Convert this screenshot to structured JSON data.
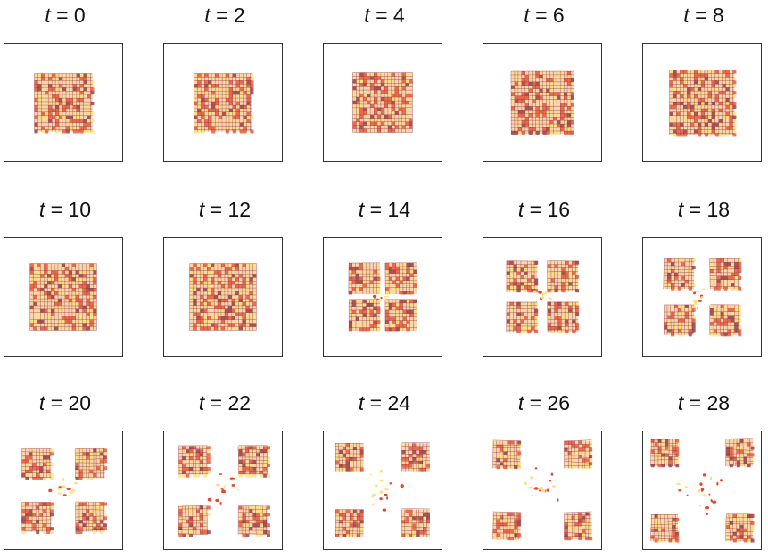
{
  "figure": {
    "variable": "t",
    "equals": "=",
    "panels": [
      {
        "time": "0",
        "state": "intact",
        "spread": 0.0
      },
      {
        "time": "2",
        "state": "intact",
        "spread": 0.0
      },
      {
        "time": "4",
        "state": "intact",
        "spread": 0.0
      },
      {
        "time": "6",
        "state": "intact",
        "spread": 0.0
      },
      {
        "time": "8",
        "state": "intact",
        "spread": 0.0
      },
      {
        "time": "10",
        "state": "intact",
        "spread": 0.0
      },
      {
        "time": "12",
        "state": "intact",
        "spread": 0.0
      },
      {
        "time": "14",
        "state": "cracking",
        "spread": 0.05
      },
      {
        "time": "16",
        "state": "fracture",
        "spread": 0.12
      },
      {
        "time": "18",
        "state": "fracture",
        "spread": 0.2
      },
      {
        "time": "20",
        "state": "fracture",
        "spread": 0.32
      },
      {
        "time": "22",
        "state": "fracture",
        "spread": 0.42
      },
      {
        "time": "24",
        "state": "fracture",
        "spread": 0.52
      },
      {
        "time": "26",
        "state": "fracture",
        "spread": 0.6
      },
      {
        "time": "28",
        "state": "fracture",
        "spread": 0.66
      }
    ],
    "colors": {
      "frame": "#333333",
      "mesh_fill": "#f6b36a",
      "mesh_line": "#8a2a3a",
      "mesh_hot": "#e8452c",
      "mesh_light": "#ffe07a"
    }
  }
}
